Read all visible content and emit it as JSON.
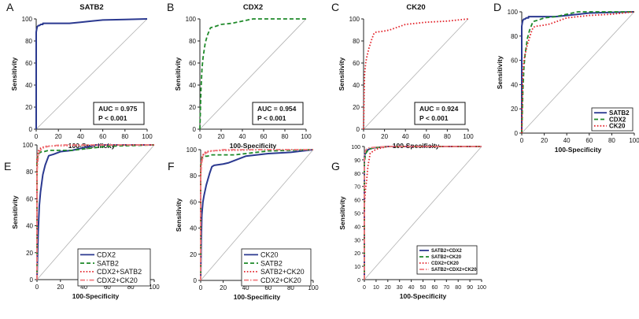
{
  "figure": {
    "background": "#ffffff",
    "colors": {
      "navy": "#2b3990",
      "green": "#1f8a2a",
      "red": "#e3242b",
      "pink": "#f07c80",
      "diagonal": "#b0b0b0"
    }
  },
  "chart_data": [
    {
      "panel": "A",
      "type": "line",
      "title": "SATB2",
      "xlabel": "100-Specificity",
      "ylabel": "Sensitivity",
      "xlim": [
        0,
        100
      ],
      "ylim": [
        0,
        100
      ],
      "xticks": [
        0,
        20,
        40,
        60,
        80,
        100
      ],
      "yticks": [
        0,
        20,
        40,
        60,
        80,
        100
      ],
      "diagonal": true,
      "auc_box": [
        "AUC = 0.975",
        "P < 0.001"
      ],
      "series": [
        {
          "color": "navy",
          "dash": "solid",
          "x": [
            0,
            0,
            0.5,
            1,
            2,
            3,
            4,
            6,
            6,
            10,
            30,
            40,
            50,
            60,
            80,
            100
          ],
          "y": [
            0,
            88,
            91,
            93,
            94,
            94,
            95,
            95,
            96,
            96,
            96,
            97,
            98,
            99,
            99.5,
            100
          ]
        }
      ]
    },
    {
      "panel": "B",
      "type": "line",
      "title": "CDX2",
      "xlabel": "100-Specificity",
      "ylabel": "Sensitivity",
      "xlim": [
        0,
        100
      ],
      "ylim": [
        0,
        100
      ],
      "xticks": [
        0,
        20,
        40,
        60,
        80,
        100
      ],
      "yticks": [
        0,
        20,
        40,
        60,
        80,
        100
      ],
      "diagonal": true,
      "auc_box": [
        "AUC = 0.954",
        "P < 0.001"
      ],
      "series": [
        {
          "color": "green",
          "dash": "dash",
          "x": [
            0,
            1,
            2,
            3,
            5,
            7,
            10,
            14,
            20,
            30,
            45,
            50,
            100
          ],
          "y": [
            0,
            35,
            55,
            65,
            78,
            85,
            92,
            93,
            95,
            96,
            99,
            100,
            100
          ]
        }
      ]
    },
    {
      "panel": "C",
      "type": "line",
      "title": "CK20",
      "xlabel": "100-Specificity",
      "ylabel": "Sensitivity",
      "xlim": [
        0,
        100
      ],
      "ylim": [
        0,
        100
      ],
      "xticks": [
        0,
        20,
        40,
        60,
        80,
        100
      ],
      "yticks": [
        0,
        20,
        40,
        60,
        80,
        100
      ],
      "diagonal": true,
      "auc_box": [
        "AUC = 0.924",
        "P < 0.001"
      ],
      "series": [
        {
          "color": "red",
          "dash": "dot",
          "x": [
            0,
            0.5,
            1,
            2,
            3,
            5,
            8,
            10,
            12,
            20,
            25,
            40,
            60,
            80,
            100
          ],
          "y": [
            0,
            30,
            50,
            60,
            65,
            73,
            82,
            87,
            88,
            89,
            90,
            95,
            97,
            98,
            100
          ]
        }
      ]
    },
    {
      "panel": "D",
      "type": "line",
      "title": "",
      "xlabel": "100-Specificity",
      "ylabel": "Sensitivity",
      "xlim": [
        0,
        100
      ],
      "ylim": [
        0,
        100
      ],
      "xticks": [
        0,
        20,
        40,
        60,
        80,
        100
      ],
      "yticks": [
        0,
        20,
        40,
        60,
        80,
        100
      ],
      "diagonal": true,
      "legend_position": "bottom-right",
      "series": [
        {
          "name": "SATB2",
          "color": "navy",
          "dash": "solid",
          "x": [
            0,
            0,
            0.5,
            1,
            2,
            3,
            4,
            6,
            6,
            10,
            30,
            40,
            50,
            60,
            80,
            100
          ],
          "y": [
            0,
            88,
            91,
            93,
            94,
            94,
            95,
            95,
            96,
            96,
            96,
            97,
            98,
            99,
            99.5,
            100
          ]
        },
        {
          "name": "CDX2",
          "color": "green",
          "dash": "dash",
          "x": [
            0,
            1,
            2,
            3,
            5,
            7,
            10,
            14,
            20,
            30,
            45,
            50,
            100
          ],
          "y": [
            0,
            35,
            55,
            65,
            78,
            85,
            92,
            93,
            95,
            96,
            99,
            100,
            100
          ]
        },
        {
          "name": "CK20",
          "color": "red",
          "dash": "dot",
          "x": [
            0,
            0.5,
            1,
            2,
            3,
            5,
            8,
            10,
            12,
            20,
            25,
            40,
            60,
            80,
            100
          ],
          "y": [
            0,
            30,
            50,
            60,
            65,
            73,
            82,
            87,
            88,
            89,
            90,
            95,
            97,
            98,
            100
          ]
        }
      ]
    },
    {
      "panel": "E",
      "type": "line",
      "title": "",
      "xlabel": "100-Specificity",
      "ylabel": "Sensitivity",
      "xlim": [
        0,
        100
      ],
      "ylim": [
        0,
        100
      ],
      "xticks": [
        0,
        20,
        40,
        60,
        80,
        100
      ],
      "yticks": [
        0,
        20,
        40,
        60,
        80,
        100
      ],
      "diagonal": true,
      "legend_position": "bottom-right",
      "series": [
        {
          "name": "CDX2",
          "color": "navy",
          "dash": "solid",
          "x": [
            0,
            1,
            2,
            3,
            5,
            7,
            10,
            14,
            20,
            30,
            45,
            50,
            100
          ],
          "y": [
            0,
            35,
            55,
            65,
            78,
            85,
            92,
            93,
            95,
            96,
            99,
            100,
            100
          ]
        },
        {
          "name": "SATB2",
          "color": "green",
          "dash": "dash",
          "x": [
            0,
            0,
            1,
            2,
            4,
            6,
            10,
            30,
            40,
            60,
            80,
            100
          ],
          "y": [
            0,
            88,
            93,
            94,
            95,
            95,
            96,
            96,
            97,
            99,
            99.5,
            100
          ]
        },
        {
          "name": "CDX2+SATB2",
          "color": "red",
          "dash": "dot",
          "x": [
            0,
            0,
            1,
            2,
            4,
            8,
            20,
            60,
            100
          ],
          "y": [
            0,
            90,
            95,
            97,
            98,
            99,
            99.5,
            100,
            100
          ]
        },
        {
          "name": "CDX2+CK20",
          "color": "pink",
          "dash": "dashdot",
          "x": [
            0,
            0,
            1,
            2,
            4,
            6,
            10,
            20,
            100
          ],
          "y": [
            0,
            80,
            90,
            95,
            97,
            98,
            99,
            100,
            100
          ]
        }
      ]
    },
    {
      "panel": "F",
      "type": "line",
      "title": "",
      "xlabel": "100-Specificity",
      "ylabel": "Sensitivity",
      "xlim": [
        0,
        100
      ],
      "ylim": [
        0,
        100
      ],
      "xticks": [
        0,
        20,
        40,
        60,
        80,
        100
      ],
      "yticks": [
        0,
        20,
        40,
        60,
        80,
        100
      ],
      "diagonal": true,
      "legend_position": "bottom-right",
      "series": [
        {
          "name": "CK20",
          "color": "navy",
          "dash": "solid",
          "x": [
            0,
            0.5,
            1,
            2,
            3,
            5,
            8,
            10,
            12,
            20,
            25,
            40,
            60,
            80,
            100
          ],
          "y": [
            0,
            30,
            50,
            60,
            65,
            73,
            82,
            87,
            88,
            89,
            90,
            95,
            97,
            98,
            100
          ]
        },
        {
          "name": "SATB2",
          "color": "green",
          "dash": "dash",
          "x": [
            0,
            0,
            1,
            2,
            4,
            6,
            10,
            30,
            40,
            60,
            80,
            100
          ],
          "y": [
            0,
            88,
            93,
            94,
            95,
            95,
            96,
            96,
            97,
            99,
            99.5,
            100
          ]
        },
        {
          "name": "SATB2+CK20",
          "color": "red",
          "dash": "dot",
          "x": [
            0,
            0,
            1,
            2,
            4,
            8,
            20,
            60,
            100
          ],
          "y": [
            0,
            88,
            94,
            96,
            98,
            99,
            99.5,
            100,
            100
          ]
        },
        {
          "name": "CDX2+CK20",
          "color": "pink",
          "dash": "dashdot",
          "x": [
            0,
            0,
            1,
            2,
            4,
            6,
            10,
            20,
            100
          ],
          "y": [
            0,
            80,
            90,
            95,
            97,
            98,
            99,
            100,
            100
          ]
        }
      ]
    },
    {
      "panel": "G",
      "type": "line",
      "title": "",
      "xlabel": "100-Specificity",
      "ylabel": "Sensitivity",
      "xlim": [
        0,
        100
      ],
      "ylim": [
        0,
        100
      ],
      "xticks": [
        0,
        10,
        20,
        30,
        40,
        50,
        60,
        70,
        80,
        90,
        100
      ],
      "yticks": [
        0,
        10,
        20,
        30,
        40,
        50,
        60,
        70,
        80,
        90,
        100
      ],
      "diagonal": true,
      "legend_position": "bottom-right",
      "series": [
        {
          "name": "SATB2+CDX2",
          "color": "navy",
          "dash": "solid",
          "x": [
            0,
            0,
            1,
            2,
            4,
            8,
            20,
            100
          ],
          "y": [
            0,
            92,
            96,
            97,
            98,
            99,
            100,
            100
          ]
        },
        {
          "name": "SATB2+CK20",
          "color": "green",
          "dash": "dash",
          "x": [
            0,
            0,
            1,
            2,
            4,
            8,
            20,
            100
          ],
          "y": [
            0,
            88,
            94,
            96,
            98,
            99,
            100,
            100
          ]
        },
        {
          "name": "CDX2+CK20",
          "color": "red",
          "dash": "dot",
          "x": [
            0,
            0,
            0.5,
            1,
            2,
            3,
            5,
            10,
            20,
            100
          ],
          "y": [
            0,
            55,
            62,
            68,
            75,
            85,
            95,
            98,
            100,
            100
          ]
        },
        {
          "name": "SATB2+CDX2+CK20",
          "color": "pink",
          "dash": "dashdot",
          "x": [
            0,
            0,
            1,
            2,
            4,
            10,
            20,
            100
          ],
          "y": [
            0,
            93,
            97,
            98,
            99,
            99.5,
            100,
            100
          ]
        }
      ]
    }
  ]
}
